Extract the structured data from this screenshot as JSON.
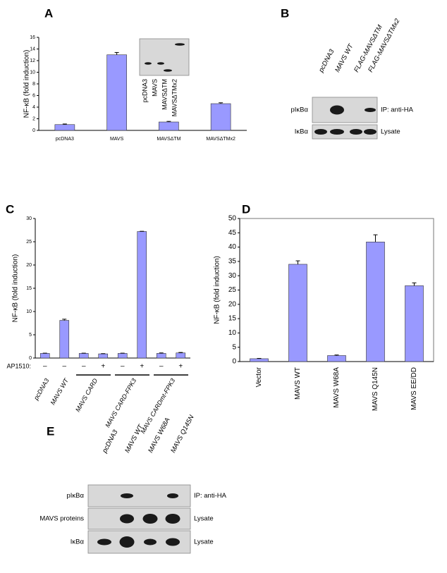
{
  "chart_data": [
    {
      "panel": "A",
      "type": "bar",
      "y_label": "NF-κB (fold induction)",
      "categories": [
        "pcDNA3",
        "MAVS",
        "MAVSΔTM",
        "MAVSΔTMx2"
      ],
      "values": [
        1.0,
        13.0,
        1.45,
        4.6
      ],
      "errors": [
        0.1,
        0.4,
        0.1,
        0.15
      ],
      "color": "#9999ff",
      "ylim": [
        0,
        16
      ],
      "yticks": [
        0,
        2,
        4,
        6,
        8,
        10,
        12,
        14,
        16
      ],
      "inset_labels": [
        "pcDNA3",
        "MAVS",
        "MAVSΔTM",
        "MAVSΔTMx2"
      ]
    },
    {
      "panel": "C",
      "type": "bar",
      "y_label": "NF-κB (fold induction)",
      "category_title": "AP1510:",
      "categories": [
        "–",
        "–",
        "–",
        "+",
        "–",
        "+",
        "–",
        "+"
      ],
      "groups": [
        {
          "name": "pcDNA3",
          "size": 1
        },
        {
          "name": "MAVS WT",
          "size": 1
        },
        {
          "name": "MAVS CARD",
          "size": 2
        },
        {
          "name": "MAVS CARD-FPK3",
          "size": 2
        },
        {
          "name": "MAVS CARDmt-FPK3",
          "size": 2
        }
      ],
      "values": [
        1.0,
        8.1,
        1.0,
        0.9,
        1.0,
        27.2,
        1.0,
        1.1
      ],
      "errors": [
        0.05,
        0.25,
        0.05,
        0.05,
        0.05,
        0.05,
        0.1,
        0.1
      ],
      "color": "#9999ff",
      "ylim": [
        0,
        30
      ],
      "yticks": [
        0,
        5,
        10,
        15,
        20,
        25,
        30
      ]
    },
    {
      "panel": "D",
      "type": "bar",
      "y_label": "NF-κB (fold induction)",
      "categories": [
        "Vector",
        "MAVS WT",
        "MAVS W68A",
        "MAVS Q145N",
        "MAVS EE/DD"
      ],
      "values": [
        1.0,
        34.0,
        2.1,
        41.8,
        26.5
      ],
      "errors": [
        0.1,
        1.2,
        0.2,
        2.5,
        1.0
      ],
      "color": "#9999ff",
      "ylim": [
        0,
        50
      ],
      "yticks": [
        0,
        5,
        10,
        15,
        20,
        25,
        30,
        35,
        40,
        45,
        50
      ],
      "frame": true
    }
  ],
  "blots": [
    {
      "panel": "B",
      "lanes": [
        "pcDNA3",
        "MAVS WT",
        "FLAG-MAVSΔTM",
        "FLAG-MAVSΔTMx2"
      ],
      "rows": [
        {
          "label": "pIκBα",
          "note": "IP: anti-HA"
        },
        {
          "label": "IκBα",
          "note": "Lysate"
        }
      ]
    },
    {
      "panel": "E",
      "lanes": [
        "pcDNA3",
        "MAVS WT",
        "MAVS W68A",
        "MAVS Q145N"
      ],
      "rows": [
        {
          "label": "pIκBα",
          "note": "IP: anti-HA"
        },
        {
          "label": "MAVS proteins",
          "note": "Lysate"
        },
        {
          "label": "IκBα",
          "note": "Lysate"
        }
      ]
    }
  ]
}
